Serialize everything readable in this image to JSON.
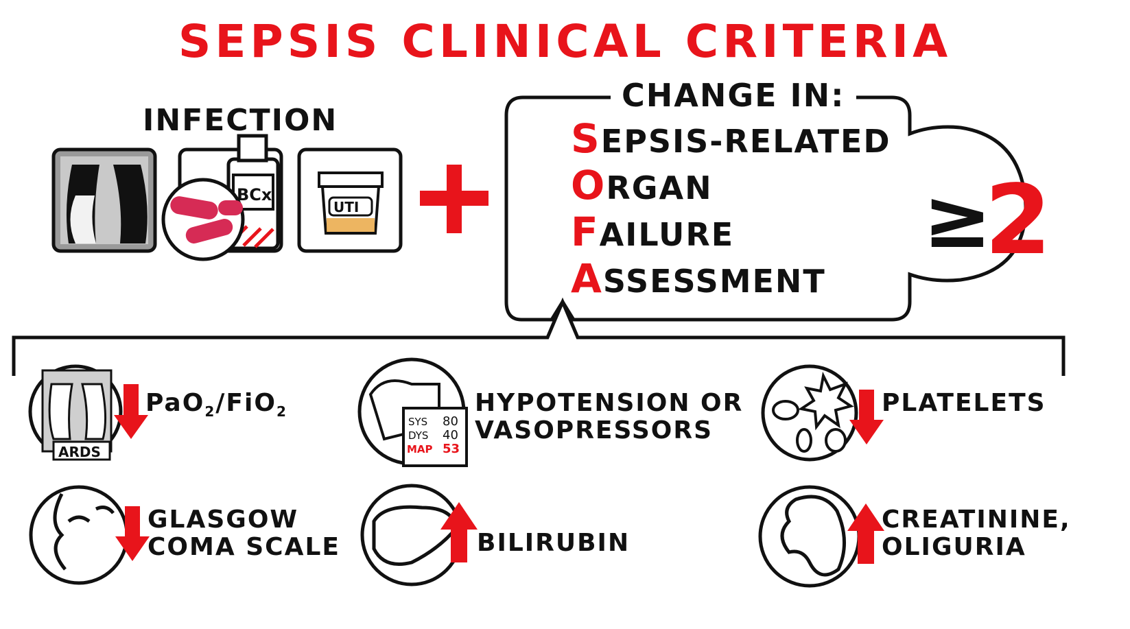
{
  "title": "SEPSIS CLINICAL CRITERIA",
  "infection": {
    "label": "INFECTION",
    "icons": [
      {
        "name": "chest-xray-icon"
      },
      {
        "name": "blood-culture-icon",
        "label": "BCx"
      },
      {
        "name": "urine-cup-icon",
        "label": "UTI"
      }
    ]
  },
  "plus_symbol": "+",
  "sofa": {
    "heading": "CHANGE IN:",
    "lines": [
      {
        "cap": "S",
        "rest": "EPSIS-RELATED"
      },
      {
        "cap": "O",
        "rest": "RGAN"
      },
      {
        "cap": "F",
        "rest": "AILURE"
      },
      {
        "cap": "A",
        "rest": "SSESSMENT"
      }
    ],
    "threshold_symbol": "≥",
    "threshold_value": "2"
  },
  "criteria": [
    {
      "id": "resp",
      "icon": "ards-lungs-icon",
      "icon_label": "ARDS",
      "label_main": "PaO",
      "label_sub1": "2",
      "label_mid": "/FiO",
      "label_sub2": "2",
      "direction": "down"
    },
    {
      "id": "cardio",
      "icon": "blood-pressure-monitor-icon",
      "bp": {
        "sys_label": "SYS",
        "sys": "80",
        "dys_label": "DYS",
        "dys": "40",
        "map_label": "MAP",
        "map": "53"
      },
      "line1": "HYPOTENSION OR",
      "line2": "VASOPRESSORS"
    },
    {
      "id": "coag",
      "icon": "platelets-icon",
      "line1": "PLATELETS",
      "direction": "down"
    },
    {
      "id": "cns",
      "icon": "face-icon",
      "line1": "GLASGOW",
      "line2": "COMA SCALE",
      "direction": "down"
    },
    {
      "id": "liver",
      "icon": "liver-icon",
      "line1": "BILIRUBIN",
      "direction": "up"
    },
    {
      "id": "renal",
      "icon": "kidney-icon",
      "line1": "CREATININE,",
      "line2": "OLIGURIA",
      "direction": "up"
    }
  ],
  "colors": {
    "accent": "#e8141b",
    "ink": "#111111"
  }
}
